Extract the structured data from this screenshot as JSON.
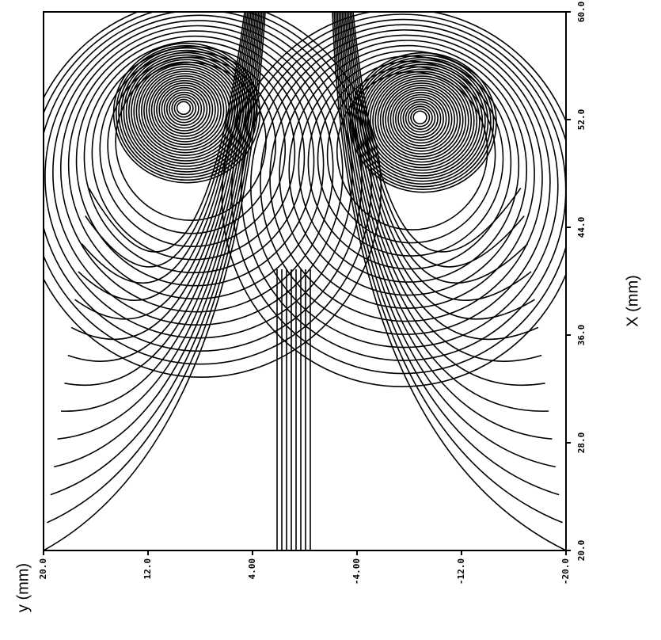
{
  "chart_data": {
    "type": "contour",
    "xlabel": "y (mm)",
    "ylabel": "X (mm)",
    "xlim": [
      20,
      -20
    ],
    "xticks": [
      {
        "value": 20,
        "label": "20.0"
      },
      {
        "value": 12,
        "label": "12.0"
      },
      {
        "value": 4,
        "label": "4.00"
      },
      {
        "value": -4,
        "label": "-4.00"
      },
      {
        "value": -12,
        "label": "-12.0"
      },
      {
        "value": -20,
        "label": "-20.0"
      }
    ],
    "ylim": [
      20,
      60
    ],
    "yticks": [
      {
        "value": 20,
        "label": "20.0"
      },
      {
        "value": 28,
        "label": "28.0"
      },
      {
        "value": 36,
        "label": "36.0"
      },
      {
        "value": 44,
        "label": "44.0"
      },
      {
        "value": 52,
        "label": "52.0"
      },
      {
        "value": 60,
        "label": "60.0"
      }
    ],
    "x": [
      9.3,
      -8.8
    ],
    "y": [
      52.9,
      52.2
    ]
  }
}
